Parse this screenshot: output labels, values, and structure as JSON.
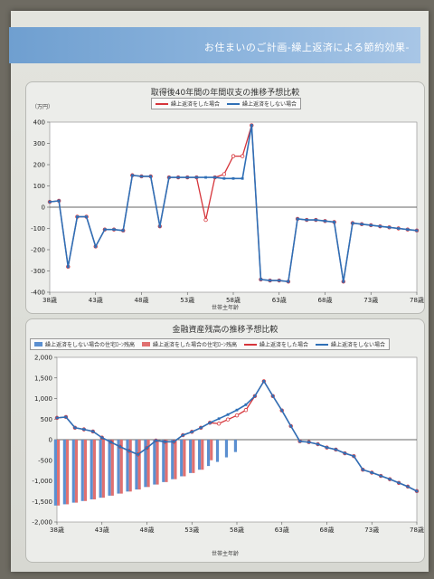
{
  "banner": {
    "title": "お住まいのご計画-繰上返済による節約効果-"
  },
  "colors": {
    "red": "#d6343a",
    "blue": "#2f6fb6",
    "bar_red": "#e07070",
    "bar_blue": "#5b8fd0"
  },
  "chart_data": [
    {
      "type": "line",
      "title": "取得後40年間の年間収支の推移予想比較",
      "ylabel": "（万円）",
      "xlabel": "世帯主年齢",
      "ylim": [
        -400,
        400
      ],
      "yticks": [
        400,
        300,
        200,
        100,
        0,
        -100,
        -200,
        -300,
        -400
      ],
      "x_ticks": [
        38,
        43,
        48,
        53,
        58,
        63,
        68,
        73,
        78
      ],
      "x_tick_labels": [
        "38歳",
        "43歳",
        "48歳",
        "53歳",
        "58歳",
        "63歳",
        "68歳",
        "73歳",
        "78歳"
      ],
      "legend": [
        "繰上返済をした場合",
        "繰上返済をしない場合"
      ],
      "x": [
        38,
        39,
        40,
        41,
        42,
        43,
        44,
        45,
        46,
        47,
        48,
        49,
        50,
        51,
        52,
        53,
        54,
        55,
        56,
        57,
        58,
        59,
        60,
        61,
        62,
        63,
        64,
        65,
        66,
        67,
        68,
        69,
        70,
        71,
        72,
        73,
        74,
        75,
        76,
        77,
        78
      ],
      "series": [
        {
          "name": "繰上返済をした場合",
          "color": "red",
          "values": [
            25,
            30,
            -280,
            -45,
            -45,
            -185,
            -105,
            -105,
            -110,
            150,
            145,
            145,
            -90,
            140,
            140,
            140,
            140,
            -60,
            140,
            155,
            240,
            240,
            385,
            -340,
            -345,
            -345,
            -350,
            -55,
            -60,
            -60,
            -65,
            -70,
            -350,
            -75,
            -80,
            -85,
            -90,
            -95,
            -100,
            -105,
            -110
          ]
        },
        {
          "name": "繰上返済をしない場合",
          "color": "blue",
          "values": [
            25,
            30,
            -280,
            -45,
            -45,
            -185,
            -105,
            -105,
            -110,
            150,
            145,
            145,
            -90,
            140,
            140,
            140,
            140,
            140,
            140,
            135,
            135,
            135,
            385,
            -340,
            -345,
            -345,
            -350,
            -55,
            -60,
            -60,
            -65,
            -70,
            -350,
            -75,
            -80,
            -85,
            -90,
            -95,
            -100,
            -105,
            -110
          ]
        }
      ]
    },
    {
      "type": "line",
      "title": "金融資産残高の推移予想比較",
      "xlabel": "世帯主年齢",
      "ylim": [
        -2000,
        2000
      ],
      "yticks": [
        2000,
        1500,
        1000,
        500,
        0,
        -500,
        -1000,
        -1500,
        -2000
      ],
      "ytick_labels": [
        "2,000",
        "1,500",
        "1,000",
        "500",
        "0",
        "-500",
        "-1,000",
        "-1,500",
        "-2,000"
      ],
      "x_ticks": [
        38,
        43,
        48,
        53,
        58,
        63,
        68,
        73,
        78
      ],
      "x_tick_labels": [
        "38歳",
        "43歳",
        "48歳",
        "53歳",
        "58歳",
        "63歳",
        "68歳",
        "73歳",
        "78歳"
      ],
      "legend": [
        "繰上返済をしない場合の住宅ﾛｰﾝ残高",
        "繰上返済をした場合の住宅ﾛｰﾝ残高",
        "繰上返済をした場合",
        "繰上返済をしない場合"
      ],
      "x": [
        38,
        39,
        40,
        41,
        42,
        43,
        44,
        45,
        46,
        47,
        48,
        49,
        50,
        51,
        52,
        53,
        54,
        55,
        56,
        57,
        58,
        59,
        60,
        61,
        62,
        63,
        64,
        65,
        66,
        67,
        68,
        69,
        70,
        71,
        72,
        73,
        74,
        75,
        76,
        77,
        78
      ],
      "bars": [
        {
          "name": "繰上返済をしない場合の住宅ﾛｰﾝ残高",
          "color": "bar_blue",
          "x": [
            38,
            39,
            40,
            41,
            42,
            43,
            44,
            45,
            46,
            47,
            48,
            49,
            50,
            51,
            52,
            53,
            54,
            55,
            56,
            57,
            58
          ],
          "values": [
            -1600,
            -1570,
            -1530,
            -1490,
            -1450,
            -1410,
            -1360,
            -1310,
            -1260,
            -1210,
            -1150,
            -1090,
            -1030,
            -960,
            -890,
            -810,
            -730,
            -640,
            -540,
            -430,
            -300
          ]
        },
        {
          "name": "繰上返済をした場合の住宅ﾛｰﾝ残高",
          "color": "bar_red",
          "x": [
            38,
            39,
            40,
            41,
            42,
            43,
            44,
            45,
            46,
            47,
            48,
            49,
            50,
            51,
            52,
            53,
            54,
            55
          ],
          "values": [
            -1600,
            -1570,
            -1530,
            -1490,
            -1450,
            -1410,
            -1360,
            -1310,
            -1260,
            -1210,
            -1150,
            -1090,
            -1030,
            -960,
            -890,
            -810,
            -730,
            -500
          ]
        }
      ],
      "series": [
        {
          "name": "繰上返済をした場合",
          "color": "red",
          "values": [
            530,
            550,
            290,
            250,
            200,
            50,
            -60,
            -170,
            -270,
            -360,
            -200,
            -20,
            -50,
            -50,
            110,
            190,
            290,
            410,
            390,
            490,
            590,
            720,
            1060,
            1420,
            1060,
            710,
            330,
            -40,
            -60,
            -110,
            -190,
            -240,
            -330,
            -400,
            -730,
            -800,
            -880,
            -960,
            -1050,
            -1140,
            -1250
          ]
        },
        {
          "name": "繰上返済をしない場合",
          "color": "blue",
          "values": [
            530,
            550,
            290,
            250,
            200,
            50,
            -60,
            -170,
            -270,
            -360,
            -200,
            -20,
            -50,
            -50,
            110,
            190,
            290,
            410,
            510,
            610,
            720,
            850,
            1060,
            1420,
            1060,
            710,
            330,
            -40,
            -60,
            -110,
            -190,
            -240,
            -330,
            -400,
            -730,
            -800,
            -880,
            -960,
            -1050,
            -1140,
            -1250
          ]
        }
      ]
    }
  ]
}
